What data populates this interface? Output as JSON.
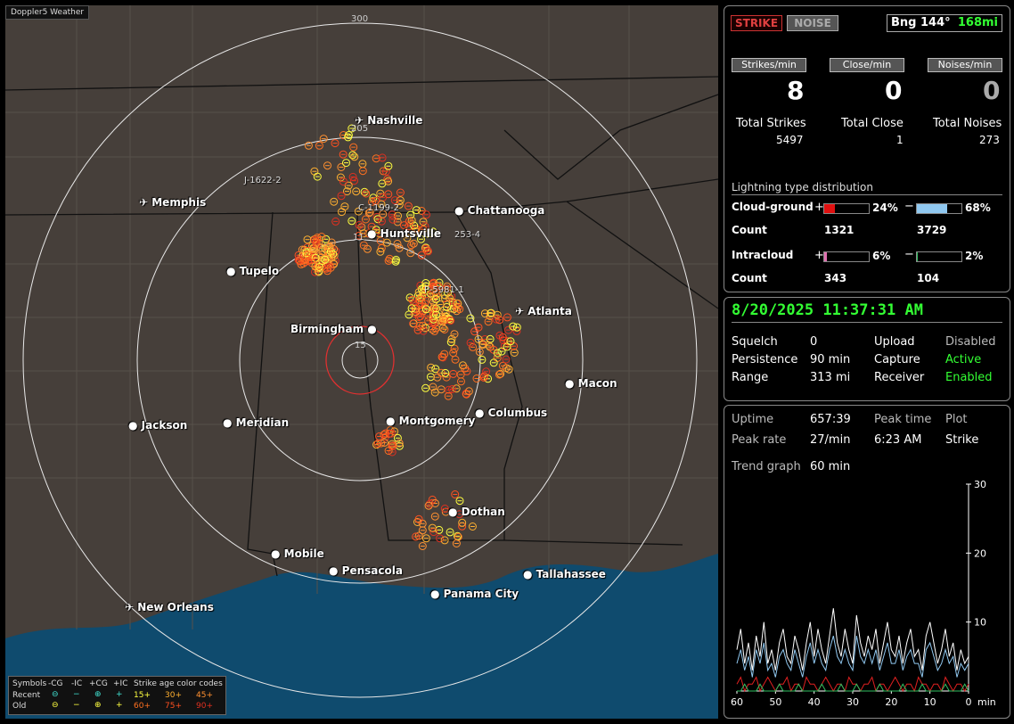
{
  "app": {
    "title": "Doppler5 Weather"
  },
  "map": {
    "ring_labels": [
      "300",
      "205",
      "15"
    ],
    "cities": [
      {
        "name": "Nashville",
        "kind": "airport"
      },
      {
        "name": "Memphis",
        "kind": "airport"
      },
      {
        "name": "Chattanooga",
        "kind": "city"
      },
      {
        "name": "Huntsville",
        "kind": "city"
      },
      {
        "name": "Tupelo",
        "kind": "city"
      },
      {
        "name": "Atlanta",
        "kind": "airport"
      },
      {
        "name": "Birmingham",
        "kind": "city"
      },
      {
        "name": "Macon",
        "kind": "city"
      },
      {
        "name": "Jackson",
        "kind": "airport"
      },
      {
        "name": "Meridian",
        "kind": "city"
      },
      {
        "name": "Montgomery",
        "kind": "city"
      },
      {
        "name": "Columbus",
        "kind": "city"
      },
      {
        "name": "Dothan",
        "kind": "city"
      },
      {
        "name": "Mobile",
        "kind": "city"
      },
      {
        "name": "Pensacola",
        "kind": "city"
      },
      {
        "name": "Tallahassee",
        "kind": "city"
      },
      {
        "name": "Panama City",
        "kind": "city"
      },
      {
        "name": "New Orleans",
        "kind": "airport"
      }
    ],
    "strike_tags": [
      "J-1622-2",
      "C-1199-2",
      "11",
      "253-4",
      "P-5981-1"
    ],
    "legend": {
      "symbols": "Symbols",
      "cols": [
        "-CG",
        "-IC",
        "+CG",
        "+IC"
      ],
      "recent": "Recent",
      "old": "Old",
      "age_title": "Strike age color codes",
      "recent_ages": [
        "15+",
        "30+",
        "45+"
      ],
      "old_ages": [
        "60+",
        "75+",
        "90+"
      ],
      "age_colors": [
        "#ffff40",
        "#ffb030",
        "#ff9030",
        "#ff7020",
        "#ff5020",
        "#e03020"
      ]
    }
  },
  "panel1": {
    "strike_btn": "STRIKE",
    "noise_btn": "NOISE",
    "bearing": "Bng 144°",
    "bearing_dist": "168mi",
    "captions": [
      "Strikes/min",
      "Close/min",
      "Noises/min"
    ],
    "rates": [
      "8",
      "0",
      "0"
    ],
    "totals_labels": [
      "Total Strikes",
      "Total Close",
      "Total Noises"
    ],
    "totals_values": [
      "5497",
      "1",
      "273"
    ],
    "dist_title": "Lightning type distribution",
    "cg_label": "Cloud-ground",
    "ic_label": "Intracloud",
    "count_label": "Count",
    "plus": "+",
    "minus": "−",
    "cg_pos_pct": "24%",
    "cg_neg_pct": "68%",
    "cg_pos_count": "1321",
    "cg_neg_count": "3729",
    "ic_pos_pct": "6%",
    "ic_neg_pct": "2%",
    "ic_pos_count": "343",
    "ic_neg_count": "104",
    "fractions": {
      "cg_pos": 0.24,
      "cg_neg": 0.68,
      "ic_pos": 0.06,
      "ic_neg": 0.02
    },
    "colors": {
      "cg_pos": "#e01010",
      "cg_neg": "#90c8f0",
      "ic_pos": "#e070b0",
      "ic_neg": "#30c060"
    }
  },
  "panel2": {
    "datetime": "8/20/2025 11:37:31 AM",
    "squelch_label": "Squelch",
    "squelch": "0",
    "persistence_label": "Persistence",
    "persistence": "90 min",
    "range_label": "Range",
    "range": "313 mi",
    "upload_label": "Upload",
    "upload": "Disabled",
    "capture_label": "Capture",
    "capture": "Active",
    "receiver_label": "Receiver",
    "receiver": "Enabled"
  },
  "panel3": {
    "uptime_label": "Uptime",
    "uptime": "657:39",
    "peak_time_label": "Peak time",
    "plot_label": "Plot",
    "peak_rate_label": "Peak rate",
    "peak_rate": "27/min",
    "peak_time": "6:23 AM",
    "plot": "Strike",
    "trend_label": "Trend graph",
    "trend": "60 min"
  },
  "chart_data": {
    "type": "line",
    "xlabel": "min",
    "x_ticks": [
      "60",
      "50",
      "40",
      "30",
      "20",
      "10",
      "0"
    ],
    "y_ticks": [
      "30",
      "20",
      "10"
    ],
    "ylim": [
      0,
      30
    ],
    "xlim": [
      60,
      0
    ],
    "series": [
      {
        "color": "#ffffff",
        "values": [
          6,
          9,
          4,
          7,
          3,
          8,
          5,
          10,
          4,
          6,
          3,
          7,
          9,
          5,
          4,
          8,
          6,
          3,
          7,
          10,
          5,
          9,
          6,
          4,
          8,
          12,
          7,
          5,
          9,
          6,
          4,
          11,
          7,
          5,
          8,
          6,
          9,
          4,
          7,
          10,
          6,
          5,
          8,
          4,
          7,
          9,
          5,
          6,
          3,
          8,
          10,
          7,
          4,
          6,
          9,
          5,
          7,
          3,
          6,
          4,
          5
        ]
      },
      {
        "color": "#90c8f0",
        "values": [
          4,
          6,
          3,
          5,
          2,
          6,
          4,
          7,
          3,
          4,
          2,
          5,
          6,
          4,
          3,
          6,
          4,
          2,
          5,
          7,
          4,
          6,
          4,
          3,
          6,
          8,
          5,
          4,
          6,
          4,
          3,
          8,
          5,
          4,
          6,
          4,
          6,
          3,
          5,
          7,
          4,
          4,
          6,
          3,
          5,
          6,
          4,
          4,
          2,
          6,
          7,
          5,
          3,
          4,
          6,
          4,
          5,
          2,
          4,
          3,
          4
        ]
      },
      {
        "color": "#e02020",
        "values": [
          1,
          2,
          0,
          1,
          1,
          2,
          0,
          1,
          2,
          1,
          0,
          1,
          1,
          2,
          0,
          1,
          1,
          0,
          2,
          1,
          1,
          0,
          1,
          2,
          1,
          0,
          1,
          1,
          0,
          2,
          1,
          1,
          0,
          1,
          1,
          2,
          0,
          1,
          1,
          0,
          1,
          2,
          1,
          0,
          1,
          1,
          0,
          2,
          1,
          1,
          0,
          1,
          1,
          0,
          2,
          1,
          0,
          1,
          1,
          0,
          1
        ]
      },
      {
        "color": "#30c060",
        "values": [
          0,
          0,
          1,
          0,
          0,
          0,
          1,
          0,
          0,
          0,
          0,
          1,
          0,
          0,
          0,
          0,
          1,
          0,
          0,
          0,
          0,
          0,
          1,
          0,
          0,
          0,
          0,
          1,
          0,
          0,
          0,
          1,
          0,
          0,
          0,
          0,
          0,
          1,
          0,
          0,
          0,
          0,
          0,
          1,
          0,
          0,
          0,
          0,
          1,
          0,
          0,
          0,
          0,
          0,
          1,
          0,
          0,
          0,
          0,
          1,
          0
        ]
      }
    ]
  }
}
